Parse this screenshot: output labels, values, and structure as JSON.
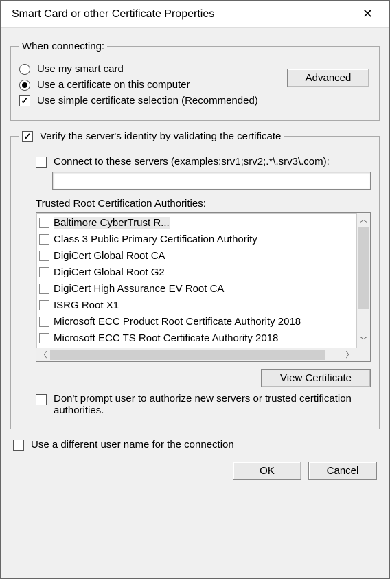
{
  "window": {
    "title": "Smart Card or other Certificate Properties"
  },
  "connecting": {
    "legend": "When connecting:",
    "radio_smart_card": "Use my smart card",
    "radio_local_cert": "Use a certificate on this computer",
    "selected": "local",
    "simple_selection": "Use simple certificate selection (Recommended)",
    "simple_selection_checked": true,
    "advanced_button": "Advanced"
  },
  "verify": {
    "legend_label": "Verify the server's identity by validating the certificate",
    "legend_checked": true,
    "connect_servers_label": "Connect to these servers (examples:srv1;srv2;.*\\.srv3\\.com):",
    "connect_servers_checked": false,
    "connect_servers_value": "",
    "trusted_label": "Trusted Root Certification Authorities:",
    "authorities": [
      {
        "label": "Baltimore CyberTrust R...",
        "checked": false,
        "highlight": true
      },
      {
        "label": "Class 3 Public Primary Certification Authority",
        "checked": false
      },
      {
        "label": "DigiCert Global Root CA",
        "checked": false
      },
      {
        "label": "DigiCert Global Root G2",
        "checked": false
      },
      {
        "label": "DigiCert High Assurance EV Root CA",
        "checked": false
      },
      {
        "label": "ISRG Root X1",
        "checked": false
      },
      {
        "label": "Microsoft ECC Product Root Certificate Authority 2018",
        "checked": false
      },
      {
        "label": "Microsoft ECC TS Root Certificate Authority 2018",
        "checked": false
      }
    ],
    "view_certificate_button": "View Certificate",
    "dont_prompt_label": "Don't prompt user to authorize new servers or trusted certification authorities.",
    "dont_prompt_checked": false
  },
  "different_user": {
    "label": "Use a different user name for the connection",
    "checked": false
  },
  "buttons": {
    "ok": "OK",
    "cancel": "Cancel"
  }
}
